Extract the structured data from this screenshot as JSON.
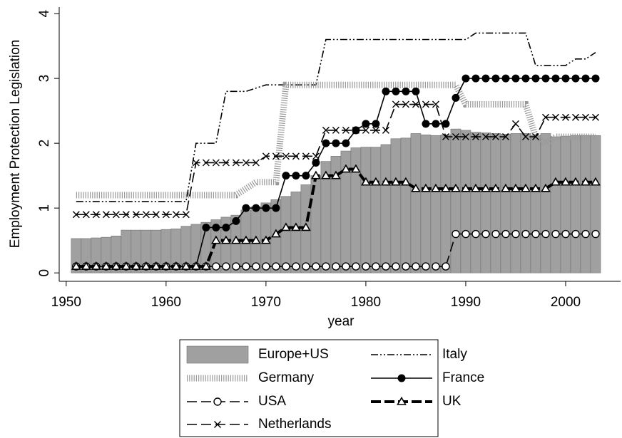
{
  "chart_data": {
    "type": "bar-line",
    "xlabel": "year",
    "ylabel": "Employment Protection Legislation",
    "x": [
      1951,
      1952,
      1953,
      1954,
      1955,
      1956,
      1957,
      1958,
      1959,
      1960,
      1961,
      1962,
      1963,
      1964,
      1965,
      1966,
      1967,
      1968,
      1969,
      1970,
      1971,
      1972,
      1973,
      1974,
      1975,
      1976,
      1977,
      1978,
      1979,
      1980,
      1981,
      1982,
      1983,
      1984,
      1985,
      1986,
      1987,
      1988,
      1989,
      1990,
      1991,
      1992,
      1993,
      1994,
      1995,
      1996,
      1997,
      1998,
      1999,
      2000,
      2001,
      2002,
      2003
    ],
    "xlim": [
      1949.3,
      2005.5
    ],
    "xticks": [
      1950,
      1960,
      1970,
      1980,
      1990,
      2000
    ],
    "ylim": [
      -0.13,
      4.1
    ],
    "yticks": [
      0,
      1,
      2,
      3,
      4
    ],
    "series": [
      {
        "name": "Europe+US",
        "type": "bar",
        "color": "#a0a0a0",
        "values": [
          0.53,
          0.53,
          0.54,
          0.55,
          0.57,
          0.66,
          0.66,
          0.66,
          0.66,
          0.67,
          0.68,
          0.72,
          0.75,
          0.78,
          0.82,
          0.86,
          0.89,
          0.97,
          1.02,
          1.08,
          1.13,
          1.18,
          1.25,
          1.36,
          1.5,
          1.72,
          1.8,
          1.88,
          1.93,
          1.94,
          1.94,
          1.98,
          2.07,
          2.08,
          2.15,
          2.13,
          2.12,
          2.13,
          2.22,
          2.2,
          2.17,
          2.16,
          2.15,
          2.14,
          2.15,
          2.15,
          2.12,
          2.15,
          2.1,
          2.11,
          2.12,
          2.12,
          2.12
        ]
      },
      {
        "name": "Italy",
        "type": "line",
        "color": "#000000",
        "values": [
          1.1,
          1.1,
          1.1,
          1.1,
          1.1,
          1.1,
          1.1,
          1.1,
          1.1,
          1.1,
          1.1,
          1.1,
          2.0,
          2.0,
          2.0,
          2.8,
          2.8,
          2.8,
          2.85,
          2.9,
          2.9,
          2.9,
          2.9,
          2.9,
          2.9,
          3.6,
          3.6,
          3.6,
          3.6,
          3.6,
          3.6,
          3.6,
          3.6,
          3.6,
          3.6,
          3.6,
          3.6,
          3.6,
          3.6,
          3.6,
          3.7,
          3.7,
          3.7,
          3.7,
          3.7,
          3.7,
          3.2,
          3.2,
          3.2,
          3.2,
          3.3,
          3.3,
          3.4
        ]
      },
      {
        "name": "Germany",
        "type": "line",
        "color": "#999999",
        "values": [
          1.2,
          1.2,
          1.2,
          1.2,
          1.2,
          1.2,
          1.2,
          1.2,
          1.2,
          1.2,
          1.2,
          1.2,
          1.2,
          1.2,
          1.2,
          1.2,
          1.2,
          1.3,
          1.4,
          1.4,
          1.4,
          2.9,
          2.9,
          2.9,
          2.9,
          2.9,
          2.9,
          2.9,
          2.9,
          2.9,
          2.9,
          2.9,
          2.9,
          2.9,
          2.9,
          2.9,
          2.9,
          2.9,
          2.9,
          2.6,
          2.6,
          2.6,
          2.6,
          2.6,
          2.6,
          2.6,
          2.1,
          2.0,
          2.1,
          2.1,
          2.1,
          2.1,
          2.1
        ]
      },
      {
        "name": "France",
        "type": "line",
        "color": "#000000",
        "values": [
          0.1,
          0.1,
          0.1,
          0.1,
          0.1,
          0.1,
          0.1,
          0.1,
          0.1,
          0.1,
          0.1,
          0.1,
          0.1,
          0.7,
          0.7,
          0.7,
          0.8,
          1.0,
          1.0,
          1.0,
          1.0,
          1.5,
          1.5,
          1.5,
          1.7,
          2.0,
          2.0,
          2.0,
          2.2,
          2.3,
          2.3,
          2.8,
          2.8,
          2.8,
          2.8,
          2.3,
          2.3,
          2.3,
          2.7,
          3.0,
          3.0,
          3.0,
          3.0,
          3.0,
          3.0,
          3.0,
          3.0,
          3.0,
          3.0,
          3.0,
          3.0,
          3.0,
          3.0
        ]
      },
      {
        "name": "USA",
        "type": "line",
        "color": "#000000",
        "values": [
          0.1,
          0.1,
          0.1,
          0.1,
          0.1,
          0.1,
          0.1,
          0.1,
          0.1,
          0.1,
          0.1,
          0.1,
          0.1,
          0.1,
          0.1,
          0.1,
          0.1,
          0.1,
          0.1,
          0.1,
          0.1,
          0.1,
          0.1,
          0.1,
          0.1,
          0.1,
          0.1,
          0.1,
          0.1,
          0.1,
          0.1,
          0.1,
          0.1,
          0.1,
          0.1,
          0.1,
          0.1,
          0.1,
          0.6,
          0.6,
          0.6,
          0.6,
          0.6,
          0.6,
          0.6,
          0.6,
          0.6,
          0.6,
          0.6,
          0.6,
          0.6,
          0.6,
          0.6
        ]
      },
      {
        "name": "UK",
        "type": "line",
        "color": "#000000",
        "values": [
          0.1,
          0.1,
          0.1,
          0.1,
          0.1,
          0.1,
          0.1,
          0.1,
          0.1,
          0.1,
          0.1,
          0.1,
          0.1,
          0.1,
          0.5,
          0.5,
          0.5,
          0.5,
          0.5,
          0.5,
          0.6,
          0.7,
          0.7,
          0.7,
          1.5,
          1.5,
          1.5,
          1.6,
          1.6,
          1.4,
          1.4,
          1.4,
          1.4,
          1.4,
          1.3,
          1.3,
          1.3,
          1.3,
          1.3,
          1.3,
          1.3,
          1.3,
          1.3,
          1.3,
          1.3,
          1.3,
          1.3,
          1.3,
          1.4,
          1.4,
          1.4,
          1.4,
          1.4
        ]
      },
      {
        "name": "Netherlands",
        "type": "line",
        "color": "#000000",
        "values": [
          0.9,
          0.9,
          0.9,
          0.9,
          0.9,
          0.9,
          0.9,
          0.9,
          0.9,
          0.9,
          0.9,
          0.9,
          1.7,
          1.7,
          1.7,
          1.7,
          1.7,
          1.7,
          1.7,
          1.8,
          1.8,
          1.8,
          1.8,
          1.8,
          1.8,
          2.2,
          2.2,
          2.2,
          2.2,
          2.2,
          2.2,
          2.2,
          2.6,
          2.6,
          2.6,
          2.6,
          2.6,
          2.1,
          2.1,
          2.1,
          2.1,
          2.1,
          2.1,
          2.1,
          2.3,
          2.1,
          2.1,
          2.4,
          2.4,
          2.4,
          2.4,
          2.4,
          2.4
        ]
      }
    ]
  }
}
